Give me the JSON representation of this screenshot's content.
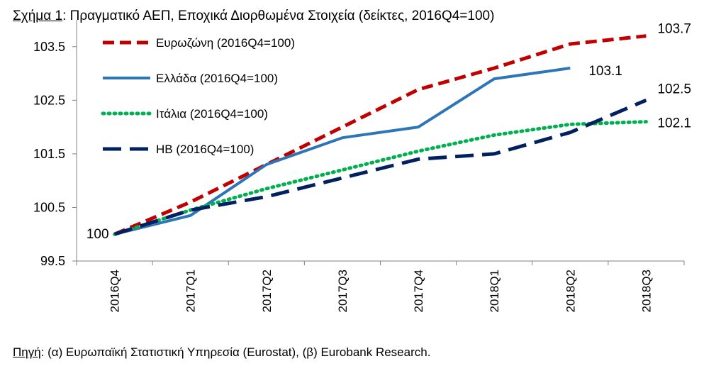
{
  "title": {
    "label": "Σχήμα 1",
    "text": ": Πραγματικό ΑΕΠ, Εποχικά Διορθωμένα Στοιχεία (δείκτες, 2016Q4=100)"
  },
  "source": {
    "label": "Πηγή",
    "text": ": (α) Ευρωπαϊκή Στατιστική Υπηρεσία (Eurostat), (β) Eurobank Research."
  },
  "chart_data": {
    "type": "line",
    "categories": [
      "2016Q4",
      "2017Q1",
      "2017Q2",
      "2017Q3",
      "2017Q4",
      "2018Q1",
      "2018Q2",
      "2018Q3"
    ],
    "ylim": [
      99.5,
      104.0
    ],
    "yticks": [
      99.5,
      100.5,
      101.5,
      102.5,
      103.5
    ],
    "ytick_labels": [
      "99.5",
      "100.5",
      "101.5",
      "102.5",
      "103.5"
    ],
    "grid": false,
    "legend_position": "top-left",
    "series": [
      {
        "name": "Ευρωζώνη (2016Q4=100)",
        "color": "#C00000",
        "style": "dashed",
        "values": [
          100.0,
          100.6,
          101.3,
          102.0,
          102.7,
          103.1,
          103.55,
          103.7
        ]
      },
      {
        "name": "Ελλάδα (2016Q4=100)",
        "color": "#2E75B6",
        "style": "solid",
        "values": [
          100.0,
          100.35,
          101.3,
          101.8,
          102.0,
          102.9,
          103.1,
          null
        ]
      },
      {
        "name": "Ιτάλια (2016Q4=100)",
        "color": "#00B050",
        "style": "dotted",
        "values": [
          100.0,
          100.45,
          100.85,
          101.2,
          101.55,
          101.85,
          102.05,
          102.1
        ]
      },
      {
        "name": "ΗΒ (2016Q4=100)",
        "color": "#002060",
        "style": "longdash",
        "values": [
          100.0,
          100.45,
          100.7,
          101.05,
          101.4,
          101.5,
          101.9,
          102.5
        ]
      }
    ],
    "annotations": [
      {
        "text": "100",
        "series": 0,
        "index": 0,
        "side": "left"
      },
      {
        "text": "103.7",
        "series": 0,
        "index": 7,
        "side": "right"
      },
      {
        "text": "103.1",
        "series": 1,
        "index": 6,
        "side": "right"
      },
      {
        "text": "102.5",
        "series": 3,
        "index": 7,
        "side": "right"
      },
      {
        "text": "102.1",
        "series": 2,
        "index": 7,
        "side": "right"
      }
    ]
  }
}
